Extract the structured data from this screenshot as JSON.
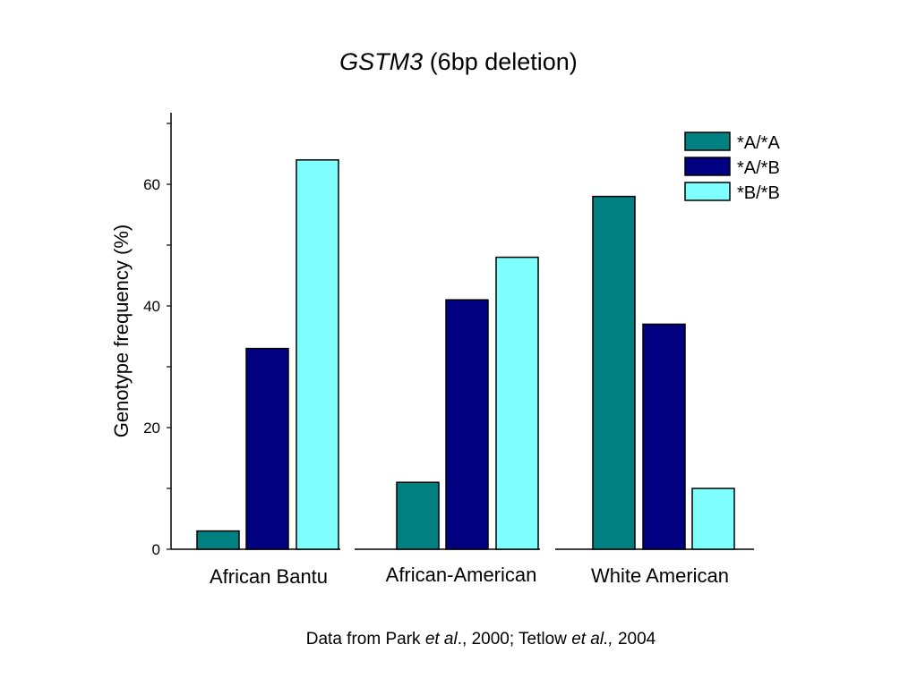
{
  "title": {
    "gene": "GSTM3",
    "rest": " (6bp deletion)"
  },
  "source": {
    "prefix": "Data from Park ",
    "etal1": "et al",
    "mid": "., 2000; Tetlow ",
    "etal2": "et al.,",
    "suffix": " 2004"
  },
  "colors": {
    "A_A": "#008080",
    "A_B": "#000080",
    "B_B": "#80FFFF"
  },
  "chart_data": {
    "type": "bar",
    "title": "GSTM3 (6bp deletion)",
    "ylabel": "Genotype frequency (%)",
    "xlabel": "",
    "ylim": [
      0,
      70
    ],
    "yticks": [
      0,
      20,
      40,
      60
    ],
    "categories": [
      "African Bantu",
      "African-American",
      "White American"
    ],
    "series": [
      {
        "name": "*A/*A",
        "values": [
          3,
          11,
          58
        ]
      },
      {
        "name": "*A/*B",
        "values": [
          33,
          41,
          37
        ]
      },
      {
        "name": "*B/*B",
        "values": [
          64,
          48,
          10
        ]
      }
    ],
    "legend": "top-right",
    "grid": false
  }
}
